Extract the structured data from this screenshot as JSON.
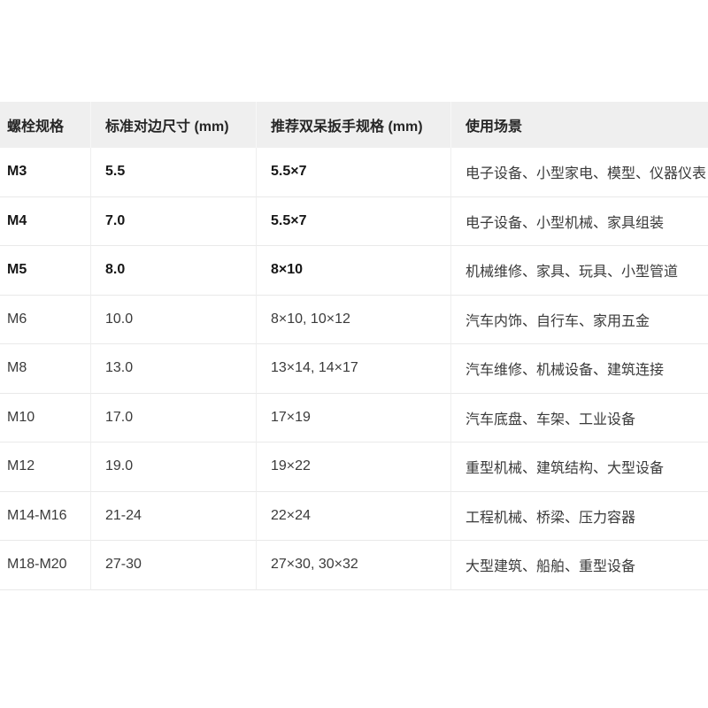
{
  "table": {
    "columns": [
      {
        "label": "螺栓规格"
      },
      {
        "label": "标准对边尺寸 (mm)"
      },
      {
        "label": "推荐双呆扳手规格 (mm)"
      },
      {
        "label": "使用场景"
      }
    ],
    "rows": [
      {
        "spec": "M3",
        "size": "5.5",
        "wrench": "5.5×7",
        "usage": "电子设备、小型家电、模型、仪器仪表",
        "bold": true
      },
      {
        "spec": "M4",
        "size": "7.0",
        "wrench": "5.5×7",
        "usage": "电子设备、小型机械、家具组装",
        "bold": true
      },
      {
        "spec": "M5",
        "size": "8.0",
        "wrench": "8×10",
        "usage": "机械维修、家具、玩具、小型管道",
        "bold": true
      },
      {
        "spec": "M6",
        "size": "10.0",
        "wrench": "8×10, 10×12",
        "usage": "汽车内饰、自行车、家用五金",
        "bold": false
      },
      {
        "spec": "M8",
        "size": "13.0",
        "wrench": "13×14, 14×17",
        "usage": "汽车维修、机械设备、建筑连接",
        "bold": false
      },
      {
        "spec": "M10",
        "size": "17.0",
        "wrench": "17×19",
        "usage": "汽车底盘、车架、工业设备",
        "bold": false
      },
      {
        "spec": "M12",
        "size": "19.0",
        "wrench": "19×22",
        "usage": "重型机械、建筑结构、大型设备",
        "bold": false
      },
      {
        "spec": "M14-M16",
        "size": "21-24",
        "wrench": "22×24",
        "usage": "工程机械、桥梁、压力容器",
        "bold": false
      },
      {
        "spec": "M18-M20",
        "size": "27-30",
        "wrench": "27×30, 30×32",
        "usage": "大型建筑、船舶、重型设备",
        "bold": false
      }
    ]
  },
  "colors": {
    "header_background": "#efefef",
    "row_border": "#e9e9e9",
    "bold_text": "#161616",
    "regular_text": "#3a3a3a"
  }
}
